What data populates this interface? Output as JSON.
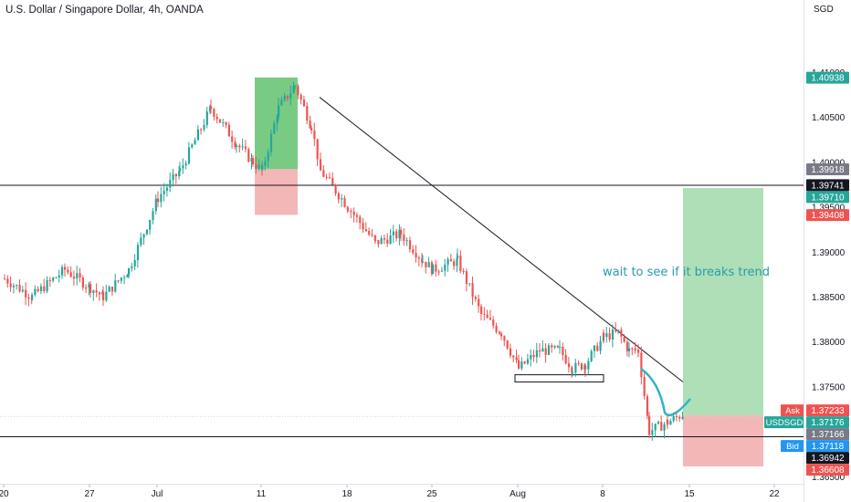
{
  "header": {
    "title": "U.S. Dollar / Singapore Dollar, 4h, OANDA",
    "currency": "SGD"
  },
  "annotations": {
    "note": "wait to see if it breaks trend"
  },
  "chart_data": {
    "type": "candlestick",
    "symbol": "USDSGD",
    "timeframe": "4h",
    "source": "OANDA",
    "ylim": [
      1.3625,
      1.413
    ],
    "y_ticks": [
      "1.36500",
      "1.37000",
      "1.37500",
      "1.38000",
      "1.38500",
      "1.39000",
      "1.39500",
      "1.40000",
      "1.40500",
      "1.41000"
    ],
    "x_ticks": [
      "20",
      "27",
      "Jul",
      "11",
      "18",
      "25",
      "Aug",
      "8",
      "15",
      "22"
    ],
    "close_path": [
      [
        "20",
        1.387
      ],
      [
        "22",
        1.385
      ],
      [
        "24",
        1.388
      ],
      [
        "26",
        1.386
      ],
      [
        "27",
        1.385
      ],
      [
        "29",
        1.388
      ],
      [
        "Jul",
        1.396
      ],
      [
        "3",
        1.399
      ],
      [
        "5",
        1.406
      ],
      [
        "7",
        1.402
      ],
      [
        "9",
        1.4
      ],
      [
        "11",
        1.399
      ],
      [
        "13",
        1.406
      ],
      [
        "14",
        1.4085
      ],
      [
        "15",
        1.404
      ],
      [
        "16",
        1.399
      ],
      [
        "18",
        1.395
      ],
      [
        "20",
        1.391
      ],
      [
        "22",
        1.392
      ],
      [
        "24",
        1.389
      ],
      [
        "25",
        1.388
      ],
      [
        "27",
        1.389
      ],
      [
        "29",
        1.383
      ],
      [
        "31",
        1.381
      ],
      [
        "Aug",
        1.377
      ],
      [
        "3",
        1.379
      ],
      [
        "5",
        1.379
      ],
      [
        "6",
        1.377
      ],
      [
        "7",
        1.3775
      ],
      [
        "8",
        1.3805
      ],
      [
        "9",
        1.381
      ],
      [
        "10",
        1.379
      ],
      [
        "11",
        1.379
      ],
      [
        "12",
        1.37
      ],
      [
        "13",
        1.371
      ],
      [
        "14",
        1.372
      ]
    ],
    "price_labels": [
      {
        "value": "1.40938",
        "color": "#26a69a"
      },
      {
        "value": "1.39918",
        "color": "#787b86"
      },
      {
        "value": "1.39741",
        "color": "#131722"
      },
      {
        "value": "1.39710",
        "color": "#26a69a"
      },
      {
        "value": "1.39408",
        "color": "#ef5350"
      },
      {
        "value": "1.37233",
        "color": "#ef5350",
        "tag": "Ask"
      },
      {
        "value": "1.37176",
        "color": "#26a69a",
        "tag": "USDSGD"
      },
      {
        "value": "1.37166",
        "color": "#787b86"
      },
      {
        "value": "1.37118",
        "color": "#2196f3",
        "tag": "Bid"
      },
      {
        "value": "1.36942",
        "color": "#131722"
      },
      {
        "value": "1.36608",
        "color": "#ef5350"
      }
    ],
    "horizontal_lines": [
      1.3974,
      1.3694
    ],
    "support_zone": [
      1.3755,
      1.3763
    ],
    "trendline": {
      "from_date": "Jul 15",
      "from_price": 1.4072,
      "to_date": "Aug 14",
      "to_price": 1.3755
    },
    "positions": [
      {
        "side": "long",
        "entry": 1.3992,
        "target": 1.4094,
        "stop": 1.3941,
        "from": "Jul 11",
        "to": "Jul 14"
      },
      {
        "side": "long",
        "entry": 1.3718,
        "target": 1.3971,
        "stop": 1.3661,
        "from": "Aug 15",
        "to": "Aug 22"
      }
    ],
    "colors": {
      "up": "#26a69a",
      "down": "#ef5350",
      "profit_zone": "#a5dbae",
      "loss_zone": "#f4b7b7",
      "line": "#131722",
      "projection": "#2fb5c4"
    },
    "grid": false
  }
}
